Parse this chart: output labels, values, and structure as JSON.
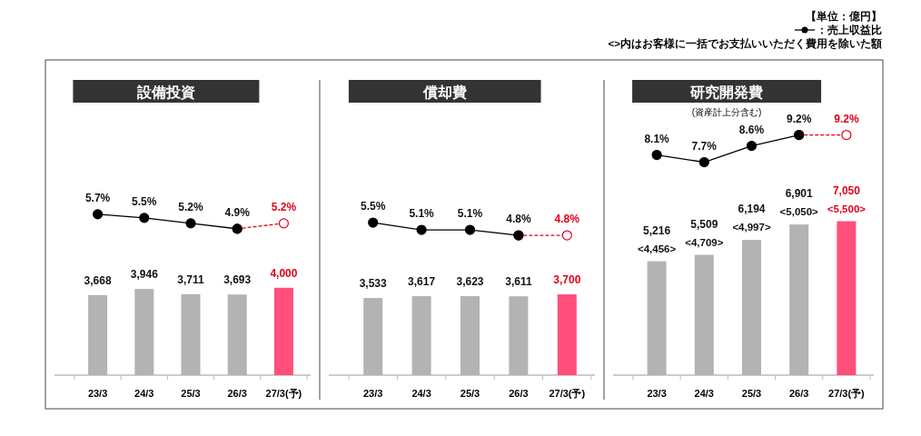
{
  "chart_data": [
    {
      "type": "line",
      "title": "設備投資",
      "categories": [
        "23/3",
        "24/3",
        "25/3",
        "26/3",
        "27/3(予)"
      ],
      "tick_labels": false,
      "series": [
        {
          "color": "#000000",
          "line_style": "solid",
          "marker": "circle",
          "values": [
            5.7,
            5.5,
            5.2,
            4.9,
            null
          ],
          "value_labels": [
            "5.7%",
            "5.5%",
            "5.2%",
            "4.9%",
            null
          ]
        },
        {
          "color": "#e0001b",
          "line_style": "dashed",
          "marker": "circle",
          "values": [
            null,
            null,
            null,
            4.9,
            5.2
          ],
          "value_labels": [
            null,
            null,
            null,
            null,
            "5.2%"
          ]
        }
      ]
    },
    {
      "type": "bar",
      "categories": [
        "23/3",
        "24/3",
        "25/3",
        "26/3",
        "27/3(予)"
      ],
      "series": [
        {
          "colors": [
            "#b3b3b3",
            "#b3b3b3",
            "#b3b3b3",
            "#b3b3b3",
            "#ff4f7a"
          ],
          "values": [
            3668,
            3946,
            3711,
            3693,
            4000
          ],
          "value_labels": [
            "3,668",
            "3,946",
            "3,711",
            "3,693",
            "4,000"
          ]
        }
      ]
    },
    {
      "type": "line",
      "title": "償却費",
      "categories": [
        "23/3",
        "24/3",
        "25/3",
        "26/3",
        "27/3(予)"
      ],
      "tick_labels": false,
      "series": [
        {
          "color": "#000000",
          "line_style": "solid",
          "marker": "circle",
          "values": [
            5.5,
            5.1,
            5.1,
            4.8,
            null
          ],
          "value_labels": [
            "5.5%",
            "5.1%",
            "5.1%",
            "4.8%",
            null
          ]
        },
        {
          "color": "#e0001b",
          "line_style": "dashed",
          "marker": "circle",
          "values": [
            null,
            null,
            null,
            4.8,
            4.8
          ],
          "value_labels": [
            null,
            null,
            null,
            null,
            "4.8%"
          ]
        }
      ]
    },
    {
      "type": "bar",
      "categories": [
        "23/3",
        "24/3",
        "25/3",
        "26/3",
        "27/3(予)"
      ],
      "series": [
        {
          "colors": [
            "#b3b3b3",
            "#b3b3b3",
            "#b3b3b3",
            "#b3b3b3",
            "#ff4f7a"
          ],
          "values": [
            3533,
            3617,
            3623,
            3611,
            3700
          ],
          "value_labels": [
            "3,533",
            "3,617",
            "3,623",
            "3,611",
            "3,700"
          ]
        }
      ]
    },
    {
      "type": "line",
      "title": "研究開発費",
      "subtitle": "(資産計上分含む)",
      "legend": "top right",
      "categories": [
        "23/3",
        "24/3",
        "25/3",
        "26/3",
        "27/3(予)"
      ],
      "tick_labels": false,
      "series": [
        {
          "name": "：売上収益比",
          "color": "#000000",
          "line_style": "solid",
          "marker": "circle",
          "values": [
            8.1,
            7.7,
            8.6,
            9.2,
            null
          ],
          "value_labels": [
            "8.1%",
            "7.7%",
            "8.6%",
            "9.2%",
            null
          ]
        },
        {
          "color": "#e0001b",
          "line_style": "dashed",
          "marker": "circle",
          "values": [
            null,
            null,
            null,
            9.2,
            9.2
          ],
          "value_labels": [
            null,
            null,
            null,
            null,
            "9.2%"
          ]
        }
      ],
      "annotations": [
        "【単位：億円】",
        "<>内はお客様に一括でお支払いいただく費用を除いた額"
      ]
    },
    {
      "type": "bar",
      "categories": [
        "23/3",
        "24/3",
        "25/3",
        "26/3",
        "27/3(予)"
      ],
      "series": [
        {
          "colors": [
            "#b3b3b3",
            "#b3b3b3",
            "#b3b3b3",
            "#b3b3b3",
            "#ff4f7a"
          ],
          "values": [
            5216,
            5509,
            6194,
            6901,
            7050
          ],
          "value_labels": [
            "5,216",
            "5,509",
            "6,194",
            "6,901",
            "7,050"
          ]
        }
      ],
      "annotations": [
        {
          "text": "<4,456>",
          "x": "23/3",
          "y": 5216
        },
        {
          "text": "<4,709>",
          "x": "24/3",
          "y": 5509
        },
        {
          "text": "<4,997>",
          "x": "25/3",
          "y": 6194
        },
        {
          "text": "<5,050>",
          "x": "26/3",
          "y": 6901
        },
        {
          "text": "<5,500>",
          "x": "27/3(予)",
          "y": 7050
        }
      ]
    }
  ]
}
